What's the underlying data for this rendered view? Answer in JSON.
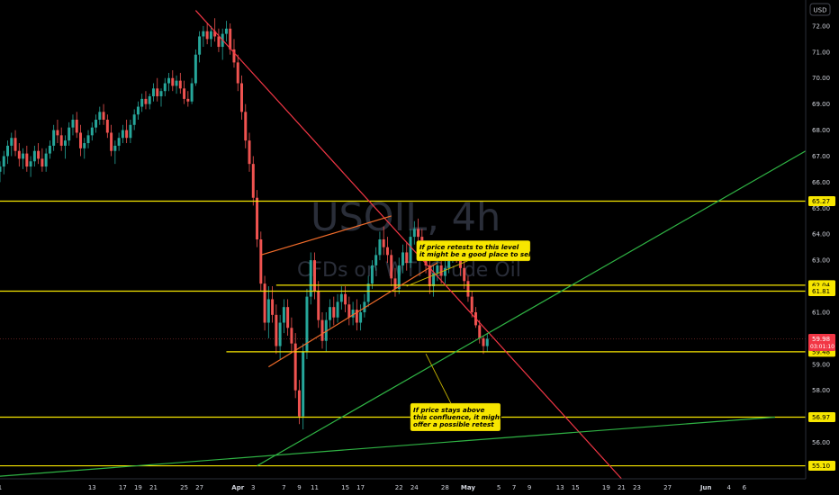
{
  "chart_data": {
    "type": "candlestick",
    "title": "USOIL, 4h",
    "subtitle": "CFDs on WTI Crude Oil",
    "currency": "USD",
    "x_labels": [
      {
        "label": "1",
        "day": 1
      },
      {
        "label": "13",
        "day": 13
      },
      {
        "label": "17",
        "day": 17
      },
      {
        "label": "19",
        "day": 19
      },
      {
        "label": "21",
        "day": 21
      },
      {
        "label": "25",
        "day": 25
      },
      {
        "label": "27",
        "day": 27
      },
      {
        "label": "Apr",
        "day": 32,
        "bold": true
      },
      {
        "label": "3",
        "day": 34
      },
      {
        "label": "7",
        "day": 38
      },
      {
        "label": "9",
        "day": 40
      },
      {
        "label": "11",
        "day": 42
      },
      {
        "label": "15",
        "day": 46
      },
      {
        "label": "17",
        "day": 48
      },
      {
        "label": "22",
        "day": 53
      },
      {
        "label": "24",
        "day": 55
      },
      {
        "label": "28",
        "day": 59
      },
      {
        "label": "May",
        "day": 62,
        "bold": true
      },
      {
        "label": "5",
        "day": 66
      },
      {
        "label": "7",
        "day": 68
      },
      {
        "label": "9",
        "day": 70
      },
      {
        "label": "13",
        "day": 74
      },
      {
        "label": "15",
        "day": 76
      },
      {
        "label": "19",
        "day": 80
      },
      {
        "label": "21",
        "day": 82
      },
      {
        "label": "23",
        "day": 84
      },
      {
        "label": "27",
        "day": 88
      },
      {
        "label": "Jun",
        "day": 93,
        "bold": true
      },
      {
        "label": "4",
        "day": 96
      },
      {
        "label": "6",
        "day": 98
      }
    ],
    "y_ticks": [
      72.0,
      71.0,
      70.0,
      69.0,
      68.0,
      67.0,
      66.0,
      65.0,
      64.0,
      63.0,
      61.0,
      60.0,
      59.0,
      58.0,
      57.0,
      56.0
    ],
    "ylim": [
      54.6,
      73.0
    ],
    "xlim": [
      1,
      106
    ],
    "price_tags": [
      {
        "text": "65.27",
        "value": 65.27
      },
      {
        "text": "62.04",
        "value": 62.04
      },
      {
        "text": "61.81",
        "value": 61.81
      },
      {
        "text": "59.48",
        "value": 59.48
      },
      {
        "text": "56.97",
        "value": 56.97
      },
      {
        "text": "55.10",
        "value": 55.1
      }
    ],
    "last_price": {
      "price": "59.98",
      "countdown": "03:01:10",
      "value": 59.98
    },
    "horizontal_levels": [
      {
        "value": 65.27,
        "from_day": 1
      },
      {
        "value": 62.04,
        "from_day": 37
      },
      {
        "value": 61.81,
        "from_day": 1
      },
      {
        "value": 59.48,
        "from_day": 30.5
      },
      {
        "value": 56.97,
        "from_day": 1
      },
      {
        "value": 55.1,
        "from_day": 1
      }
    ],
    "trend_lines": [
      {
        "color": "#f23645",
        "p1": {
          "day": 26.5,
          "value": 72.6
        },
        "p2": {
          "day": 82,
          "value": 54.6
        }
      },
      {
        "color": "#2fb344",
        "p1": {
          "day": 34.5,
          "value": 55.1
        },
        "p2": {
          "day": 106,
          "value": 67.2
        }
      },
      {
        "color": "#2fb344",
        "p1": {
          "day": 1,
          "value": 54.7
        },
        "p2": {
          "day": 102,
          "value": 56.97
        }
      },
      {
        "color": "#f26c2a",
        "p1": {
          "day": 35,
          "value": 63.2
        },
        "p2": {
          "day": 52,
          "value": 64.7
        }
      },
      {
        "color": "#f26c2a",
        "p1": {
          "day": 36,
          "value": 58.9
        },
        "p2": {
          "day": 58,
          "value": 62.9
        }
      }
    ],
    "annotations": [
      {
        "lines": [
          "If price retests to this level",
          "it might be a good place to sell"
        ],
        "box_day": 55.3,
        "box_value": 63.75,
        "pointer": {
          "day": 54,
          "value": 62.0
        }
      },
      {
        "lines": [
          "If price stays above",
          "this confluence, it might",
          "offer a possible retest"
        ],
        "box_day": 54.5,
        "box_value": 57.5,
        "pointer": {
          "day": 56.5,
          "value": 59.4
        }
      }
    ],
    "candles": [
      {
        "day": 1.0,
        "o": 66.4,
        "h": 66.8,
        "l": 66.0,
        "c": 66.6
      },
      {
        "day": 1.5,
        "o": 66.6,
        "h": 67.2,
        "l": 66.3,
        "c": 67.0
      },
      {
        "day": 2.0,
        "o": 67.0,
        "h": 67.6,
        "l": 66.7,
        "c": 67.4
      },
      {
        "day": 2.5,
        "o": 67.4,
        "h": 67.9,
        "l": 67.0,
        "c": 67.7
      },
      {
        "day": 3.0,
        "o": 67.7,
        "h": 68.0,
        "l": 67.0,
        "c": 67.2
      },
      {
        "day": 3.5,
        "o": 67.2,
        "h": 67.5,
        "l": 66.6,
        "c": 66.9
      },
      {
        "day": 4.0,
        "o": 66.9,
        "h": 67.3,
        "l": 66.5,
        "c": 67.1
      },
      {
        "day": 4.5,
        "o": 67.1,
        "h": 67.4,
        "l": 66.4,
        "c": 66.6
      },
      {
        "day": 5.0,
        "o": 66.6,
        "h": 67.0,
        "l": 66.2,
        "c": 66.8
      },
      {
        "day": 5.5,
        "o": 66.8,
        "h": 67.4,
        "l": 66.6,
        "c": 67.2
      },
      {
        "day": 6.0,
        "o": 67.2,
        "h": 67.5,
        "l": 66.7,
        "c": 66.9
      },
      {
        "day": 6.5,
        "o": 66.9,
        "h": 67.3,
        "l": 66.4,
        "c": 66.6
      },
      {
        "day": 7.0,
        "o": 66.6,
        "h": 67.3,
        "l": 66.4,
        "c": 67.1
      },
      {
        "day": 7.5,
        "o": 67.1,
        "h": 67.6,
        "l": 66.9,
        "c": 67.4
      },
      {
        "day": 8.0,
        "o": 67.4,
        "h": 68.2,
        "l": 67.2,
        "c": 68.0
      },
      {
        "day": 8.5,
        "o": 68.0,
        "h": 68.4,
        "l": 67.5,
        "c": 67.8
      },
      {
        "day": 9.0,
        "o": 67.8,
        "h": 68.1,
        "l": 67.2,
        "c": 67.4
      },
      {
        "day": 9.5,
        "o": 67.4,
        "h": 67.8,
        "l": 66.9,
        "c": 67.6
      },
      {
        "day": 10.0,
        "o": 67.6,
        "h": 68.3,
        "l": 67.4,
        "c": 68.1
      },
      {
        "day": 10.5,
        "o": 68.1,
        "h": 68.6,
        "l": 67.8,
        "c": 68.4
      },
      {
        "day": 11.0,
        "o": 68.4,
        "h": 68.7,
        "l": 67.7,
        "c": 67.9
      },
      {
        "day": 11.5,
        "o": 67.9,
        "h": 68.2,
        "l": 67.0,
        "c": 67.3
      },
      {
        "day": 12.0,
        "o": 67.3,
        "h": 67.7,
        "l": 66.9,
        "c": 67.5
      },
      {
        "day": 12.5,
        "o": 67.5,
        "h": 68.0,
        "l": 67.3,
        "c": 67.8
      },
      {
        "day": 13.0,
        "o": 67.8,
        "h": 68.3,
        "l": 67.6,
        "c": 68.1
      },
      {
        "day": 13.5,
        "o": 68.1,
        "h": 68.6,
        "l": 67.9,
        "c": 68.4
      },
      {
        "day": 14.0,
        "o": 68.4,
        "h": 68.9,
        "l": 68.2,
        "c": 68.7
      },
      {
        "day": 14.5,
        "o": 68.7,
        "h": 69.0,
        "l": 68.2,
        "c": 68.4
      },
      {
        "day": 15.0,
        "o": 68.4,
        "h": 68.6,
        "l": 67.7,
        "c": 67.9
      },
      {
        "day": 15.5,
        "o": 67.9,
        "h": 68.2,
        "l": 67.0,
        "c": 67.2
      },
      {
        "day": 16.0,
        "o": 67.2,
        "h": 67.6,
        "l": 66.7,
        "c": 67.4
      },
      {
        "day": 16.5,
        "o": 67.4,
        "h": 67.9,
        "l": 67.2,
        "c": 67.7
      },
      {
        "day": 17.0,
        "o": 67.7,
        "h": 68.2,
        "l": 67.5,
        "c": 68.0
      },
      {
        "day": 17.5,
        "o": 68.0,
        "h": 68.4,
        "l": 67.5,
        "c": 67.7
      },
      {
        "day": 18.0,
        "o": 67.7,
        "h": 68.4,
        "l": 67.5,
        "c": 68.2
      },
      {
        "day": 18.5,
        "o": 68.2,
        "h": 68.8,
        "l": 68.0,
        "c": 68.6
      },
      {
        "day": 19.0,
        "o": 68.6,
        "h": 69.1,
        "l": 68.4,
        "c": 68.9
      },
      {
        "day": 19.5,
        "o": 68.9,
        "h": 69.4,
        "l": 68.7,
        "c": 69.2
      },
      {
        "day": 20.0,
        "o": 69.2,
        "h": 69.5,
        "l": 68.8,
        "c": 69.0
      },
      {
        "day": 20.5,
        "o": 69.0,
        "h": 69.4,
        "l": 68.8,
        "c": 69.3
      },
      {
        "day": 21.0,
        "o": 69.3,
        "h": 69.8,
        "l": 69.1,
        "c": 69.6
      },
      {
        "day": 21.5,
        "o": 69.6,
        "h": 70.0,
        "l": 69.1,
        "c": 69.3
      },
      {
        "day": 22.0,
        "o": 69.3,
        "h": 69.6,
        "l": 68.9,
        "c": 69.5
      },
      {
        "day": 22.5,
        "o": 69.5,
        "h": 70.0,
        "l": 69.3,
        "c": 69.8
      },
      {
        "day": 23.0,
        "o": 69.8,
        "h": 70.2,
        "l": 69.5,
        "c": 70.0
      },
      {
        "day": 23.5,
        "o": 70.0,
        "h": 70.3,
        "l": 69.5,
        "c": 69.7
      },
      {
        "day": 24.0,
        "o": 69.7,
        "h": 70.1,
        "l": 69.4,
        "c": 69.9
      },
      {
        "day": 24.5,
        "o": 69.9,
        "h": 70.2,
        "l": 69.4,
        "c": 69.6
      },
      {
        "day": 25.0,
        "o": 69.6,
        "h": 69.9,
        "l": 69.0,
        "c": 69.2
      },
      {
        "day": 25.5,
        "o": 69.2,
        "h": 69.5,
        "l": 68.9,
        "c": 69.1
      },
      {
        "day": 26.0,
        "o": 69.1,
        "h": 70.0,
        "l": 69.0,
        "c": 69.8
      },
      {
        "day": 26.5,
        "o": 69.8,
        "h": 71.1,
        "l": 69.7,
        "c": 70.9
      },
      {
        "day": 27.0,
        "o": 70.9,
        "h": 71.8,
        "l": 70.6,
        "c": 71.6
      },
      {
        "day": 27.5,
        "o": 71.6,
        "h": 72.0,
        "l": 71.2,
        "c": 71.8
      },
      {
        "day": 28.0,
        "o": 71.8,
        "h": 72.1,
        "l": 71.3,
        "c": 71.5
      },
      {
        "day": 28.5,
        "o": 71.5,
        "h": 72.0,
        "l": 71.2,
        "c": 71.8
      },
      {
        "day": 29.0,
        "o": 71.8,
        "h": 72.3,
        "l": 71.4,
        "c": 71.6
      },
      {
        "day": 29.5,
        "o": 71.6,
        "h": 71.9,
        "l": 71.0,
        "c": 71.2
      },
      {
        "day": 30.0,
        "o": 71.2,
        "h": 71.9,
        "l": 70.7,
        "c": 71.7
      },
      {
        "day": 30.5,
        "o": 71.7,
        "h": 72.2,
        "l": 71.4,
        "c": 71.9
      },
      {
        "day": 31.0,
        "o": 71.9,
        "h": 72.1,
        "l": 70.9,
        "c": 71.1
      },
      {
        "day": 31.5,
        "o": 71.1,
        "h": 71.5,
        "l": 70.4,
        "c": 70.6
      },
      {
        "day": 32.0,
        "o": 70.6,
        "h": 70.9,
        "l": 69.5,
        "c": 69.8
      },
      {
        "day": 32.5,
        "o": 69.8,
        "h": 70.1,
        "l": 68.4,
        "c": 68.7
      },
      {
        "day": 33.0,
        "o": 68.7,
        "h": 69.0,
        "l": 67.3,
        "c": 67.6
      },
      {
        "day": 33.5,
        "o": 67.6,
        "h": 67.9,
        "l": 66.4,
        "c": 66.7
      },
      {
        "day": 34.0,
        "o": 66.7,
        "h": 67.0,
        "l": 65.1,
        "c": 65.4
      },
      {
        "day": 34.5,
        "o": 65.4,
        "h": 65.7,
        "l": 63.5,
        "c": 63.8
      },
      {
        "day": 35.0,
        "o": 63.8,
        "h": 64.1,
        "l": 61.8,
        "c": 62.1
      },
      {
        "day": 35.5,
        "o": 62.1,
        "h": 62.4,
        "l": 60.3,
        "c": 60.6
      },
      {
        "day": 36.0,
        "o": 60.6,
        "h": 62.0,
        "l": 60.0,
        "c": 61.5
      },
      {
        "day": 36.5,
        "o": 61.5,
        "h": 62.0,
        "l": 60.6,
        "c": 60.9
      },
      {
        "day": 37.0,
        "o": 60.9,
        "h": 61.3,
        "l": 59.4,
        "c": 59.7
      },
      {
        "day": 37.5,
        "o": 59.7,
        "h": 60.9,
        "l": 59.2,
        "c": 60.6
      },
      {
        "day": 38.0,
        "o": 60.6,
        "h": 61.5,
        "l": 60.2,
        "c": 61.2
      },
      {
        "day": 38.5,
        "o": 61.2,
        "h": 61.5,
        "l": 60.1,
        "c": 60.4
      },
      {
        "day": 39.0,
        "o": 60.4,
        "h": 60.8,
        "l": 59.5,
        "c": 59.8
      },
      {
        "day": 39.5,
        "o": 59.8,
        "h": 60.2,
        "l": 57.7,
        "c": 58.0
      },
      {
        "day": 40.0,
        "o": 58.0,
        "h": 58.4,
        "l": 56.7,
        "c": 57.0
      },
      {
        "day": 40.5,
        "o": 57.0,
        "h": 59.8,
        "l": 56.5,
        "c": 59.5
      },
      {
        "day": 41.0,
        "o": 59.5,
        "h": 61.9,
        "l": 59.2,
        "c": 61.6
      },
      {
        "day": 41.5,
        "o": 61.6,
        "h": 63.3,
        "l": 61.3,
        "c": 63.0
      },
      {
        "day": 42.0,
        "o": 63.0,
        "h": 63.3,
        "l": 61.5,
        "c": 61.8
      },
      {
        "day": 42.5,
        "o": 61.8,
        "h": 62.2,
        "l": 60.4,
        "c": 60.7
      },
      {
        "day": 43.0,
        "o": 60.7,
        "h": 61.0,
        "l": 59.6,
        "c": 59.9
      },
      {
        "day": 43.5,
        "o": 59.9,
        "h": 61.0,
        "l": 59.5,
        "c": 60.7
      },
      {
        "day": 44.0,
        "o": 60.7,
        "h": 61.5,
        "l": 60.4,
        "c": 61.2
      },
      {
        "day": 44.5,
        "o": 61.2,
        "h": 61.6,
        "l": 60.5,
        "c": 60.8
      },
      {
        "day": 45.0,
        "o": 60.8,
        "h": 61.7,
        "l": 60.6,
        "c": 61.4
      },
      {
        "day": 45.5,
        "o": 61.4,
        "h": 62.0,
        "l": 61.1,
        "c": 61.7
      },
      {
        "day": 46.0,
        "o": 61.7,
        "h": 62.0,
        "l": 61.0,
        "c": 61.3
      },
      {
        "day": 46.5,
        "o": 61.3,
        "h": 61.6,
        "l": 60.5,
        "c": 60.8
      },
      {
        "day": 47.0,
        "o": 60.8,
        "h": 61.4,
        "l": 60.5,
        "c": 61.1
      },
      {
        "day": 47.5,
        "o": 61.1,
        "h": 61.5,
        "l": 60.3,
        "c": 60.6
      },
      {
        "day": 48.0,
        "o": 60.6,
        "h": 61.3,
        "l": 60.3,
        "c": 61.0
      },
      {
        "day": 48.5,
        "o": 61.0,
        "h": 61.7,
        "l": 60.8,
        "c": 61.4
      },
      {
        "day": 49.0,
        "o": 61.4,
        "h": 62.4,
        "l": 61.2,
        "c": 62.1
      },
      {
        "day": 49.5,
        "o": 62.1,
        "h": 63.0,
        "l": 61.9,
        "c": 62.8
      },
      {
        "day": 50.0,
        "o": 62.8,
        "h": 63.5,
        "l": 62.6,
        "c": 63.2
      },
      {
        "day": 50.5,
        "o": 63.2,
        "h": 64.1,
        "l": 63.0,
        "c": 63.8
      },
      {
        "day": 51.0,
        "o": 63.8,
        "h": 64.3,
        "l": 63.2,
        "c": 63.5
      },
      {
        "day": 51.5,
        "o": 63.5,
        "h": 63.9,
        "l": 62.9,
        "c": 63.2
      },
      {
        "day": 52.0,
        "o": 63.2,
        "h": 63.4,
        "l": 62.0,
        "c": 62.3
      },
      {
        "day": 52.5,
        "o": 62.3,
        "h": 62.7,
        "l": 61.6,
        "c": 61.9
      },
      {
        "day": 53.0,
        "o": 61.9,
        "h": 63.1,
        "l": 61.7,
        "c": 62.8
      },
      {
        "day": 53.5,
        "o": 62.8,
        "h": 63.6,
        "l": 62.5,
        "c": 63.3
      },
      {
        "day": 54.0,
        "o": 63.3,
        "h": 63.7,
        "l": 62.6,
        "c": 62.9
      },
      {
        "day": 54.5,
        "o": 62.9,
        "h": 64.2,
        "l": 62.7,
        "c": 63.9
      },
      {
        "day": 55.0,
        "o": 63.9,
        "h": 64.5,
        "l": 63.6,
        "c": 64.2
      },
      {
        "day": 55.5,
        "o": 64.2,
        "h": 64.6,
        "l": 63.6,
        "c": 63.9
      },
      {
        "day": 56.0,
        "o": 63.9,
        "h": 64.2,
        "l": 63.2,
        "c": 63.5
      },
      {
        "day": 56.5,
        "o": 63.5,
        "h": 63.7,
        "l": 62.5,
        "c": 62.8
      },
      {
        "day": 57.0,
        "o": 62.8,
        "h": 63.0,
        "l": 61.7,
        "c": 62.0
      },
      {
        "day": 57.5,
        "o": 62.0,
        "h": 62.8,
        "l": 61.6,
        "c": 62.5
      },
      {
        "day": 58.0,
        "o": 62.5,
        "h": 63.1,
        "l": 62.2,
        "c": 62.8
      },
      {
        "day": 58.5,
        "o": 62.8,
        "h": 63.0,
        "l": 62.1,
        "c": 62.4
      },
      {
        "day": 59.0,
        "o": 62.4,
        "h": 63.0,
        "l": 62.1,
        "c": 62.7
      },
      {
        "day": 59.5,
        "o": 62.7,
        "h": 63.4,
        "l": 62.5,
        "c": 63.1
      },
      {
        "day": 60.0,
        "o": 63.1,
        "h": 63.5,
        "l": 62.9,
        "c": 63.3
      },
      {
        "day": 60.5,
        "o": 63.3,
        "h": 63.6,
        "l": 62.9,
        "c": 63.1
      },
      {
        "day": 61.0,
        "o": 63.1,
        "h": 63.4,
        "l": 62.4,
        "c": 62.7
      },
      {
        "day": 61.5,
        "o": 62.7,
        "h": 63.0,
        "l": 61.9,
        "c": 62.2
      },
      {
        "day": 62.0,
        "o": 62.2,
        "h": 62.4,
        "l": 61.4,
        "c": 61.6
      },
      {
        "day": 62.5,
        "o": 61.6,
        "h": 61.8,
        "l": 60.8,
        "c": 61.0
      },
      {
        "day": 63.0,
        "o": 61.0,
        "h": 61.2,
        "l": 60.4,
        "c": 60.5
      },
      {
        "day": 63.5,
        "o": 60.5,
        "h": 60.7,
        "l": 59.8,
        "c": 60.0
      },
      {
        "day": 64.0,
        "o": 60.0,
        "h": 60.1,
        "l": 59.4,
        "c": 59.7
      },
      {
        "day": 64.5,
        "o": 59.7,
        "h": 60.2,
        "l": 59.5,
        "c": 59.98
      }
    ]
  }
}
